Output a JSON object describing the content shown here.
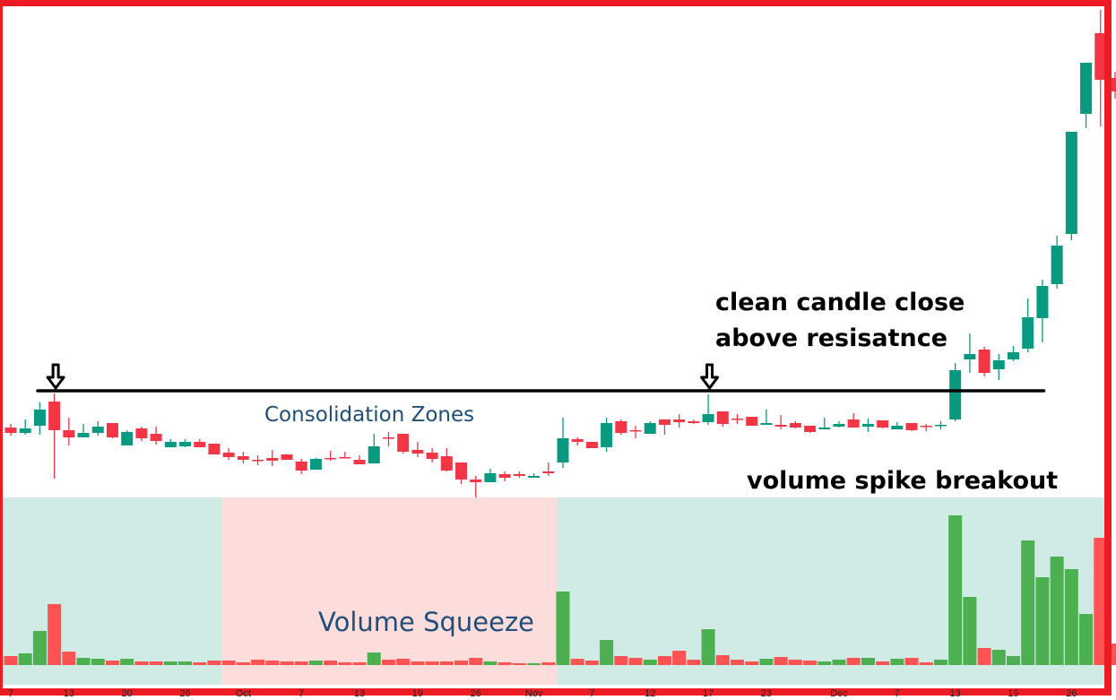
{
  "chart_data": {
    "type": "candlestick",
    "title": "",
    "xlabel": "",
    "ylabel": "",
    "grid": false,
    "x_ticks": [
      {
        "label": "7",
        "index": 1
      },
      {
        "label": "13",
        "index": 5
      },
      {
        "label": "20",
        "index": 9
      },
      {
        "label": "26",
        "index": 13
      },
      {
        "label": "Oct",
        "index": 17
      },
      {
        "label": "7",
        "index": 21
      },
      {
        "label": "13",
        "index": 25
      },
      {
        "label": "19",
        "index": 29
      },
      {
        "label": "26",
        "index": 33
      },
      {
        "label": "Nov",
        "index": 37
      },
      {
        "label": "7",
        "index": 41
      },
      {
        "label": "12",
        "index": 45
      },
      {
        "label": "17",
        "index": 49
      },
      {
        "label": "23",
        "index": 53
      },
      {
        "label": "Dec",
        "index": 58
      },
      {
        "label": "7",
        "index": 62
      },
      {
        "label": "13",
        "index": 66
      },
      {
        "label": "19",
        "index": 70
      },
      {
        "label": "26",
        "index": 74
      }
    ],
    "ohlc_columns": [
      "open",
      "high",
      "low",
      "close"
    ],
    "ohlc": [
      [
        85,
        87,
        76,
        79
      ],
      [
        83,
        87,
        74,
        77
      ],
      [
        77,
        92,
        75,
        82
      ],
      [
        85,
        111,
        75,
        103
      ],
      [
        112,
        121,
        26,
        80
      ],
      [
        80,
        94,
        63,
        72
      ],
      [
        72,
        87,
        72,
        77
      ],
      [
        77,
        90,
        74,
        84
      ],
      [
        88,
        88,
        71,
        72
      ],
      [
        63,
        80,
        63,
        78
      ],
      [
        82,
        84,
        68,
        71
      ],
      [
        76,
        84,
        64,
        68
      ],
      [
        61,
        70,
        61,
        67
      ],
      [
        62,
        70,
        61,
        67
      ],
      [
        67,
        70,
        61,
        61
      ],
      [
        65,
        65,
        53,
        53
      ],
      [
        55,
        60,
        47,
        50
      ],
      [
        51,
        56,
        43,
        47
      ],
      [
        47,
        52,
        41,
        46
      ],
      [
        49,
        58,
        40,
        46
      ],
      [
        53,
        53,
        47,
        47
      ],
      [
        45,
        48,
        31,
        35
      ],
      [
        36,
        49,
        36,
        48
      ],
      [
        49,
        57,
        46,
        48
      ],
      [
        50,
        56,
        49,
        49
      ],
      [
        47,
        52,
        42,
        42
      ],
      [
        43,
        76,
        43,
        62
      ],
      [
        72,
        78,
        62,
        71
      ],
      [
        76,
        76,
        54,
        56
      ],
      [
        58,
        67,
        50,
        54
      ],
      [
        55,
        60,
        44,
        48
      ],
      [
        51,
        60,
        34,
        35
      ],
      [
        44,
        44,
        20,
        25
      ],
      [
        25,
        29,
        5,
        22
      ],
      [
        22,
        37,
        22,
        32
      ],
      [
        31,
        34,
        23,
        27
      ],
      [
        31,
        34,
        27,
        29
      ],
      [
        27,
        32,
        27,
        29
      ],
      [
        34,
        44,
        29,
        32
      ],
      [
        44,
        94,
        38,
        71
      ],
      [
        70,
        72,
        63,
        67
      ],
      [
        67,
        67,
        60,
        60
      ],
      [
        61,
        94,
        56,
        88
      ],
      [
        90,
        92,
        75,
        77
      ],
      [
        80,
        85,
        71,
        79
      ],
      [
        76,
        90,
        76,
        88
      ],
      [
        92,
        92,
        75,
        86
      ],
      [
        92,
        98,
        83,
        89
      ],
      [
        90,
        92,
        87,
        88
      ],
      [
        89,
        120,
        86,
        98
      ],
      [
        101,
        101,
        84,
        87
      ],
      [
        93,
        98,
        87,
        92
      ],
      [
        95,
        95,
        85,
        85
      ],
      [
        86,
        103,
        86,
        88
      ],
      [
        86,
        97,
        81,
        84
      ],
      [
        88,
        90,
        82,
        83
      ],
      [
        85,
        85,
        77,
        78
      ],
      [
        81,
        94,
        81,
        83
      ],
      [
        84,
        90,
        83,
        87
      ],
      [
        92,
        99,
        83,
        83
      ],
      [
        84,
        93,
        78,
        87
      ],
      [
        91,
        91,
        82,
        83
      ],
      [
        81,
        89,
        81,
        85
      ],
      [
        88,
        88,
        79,
        80
      ],
      [
        85,
        87,
        79,
        84
      ],
      [
        85,
        90,
        81,
        86
      ],
      [
        92,
        155,
        90,
        147
      ],
      [
        159,
        188,
        144,
        165
      ],
      [
        170,
        173,
        140,
        144
      ],
      [
        148,
        165,
        136,
        158
      ],
      [
        159,
        174,
        157,
        167
      ],
      [
        171,
        227,
        167,
        206
      ],
      [
        205,
        248,
        178,
        241
      ],
      [
        243,
        297,
        238,
        286
      ],
      [
        299,
        413,
        292,
        413
      ],
      [
        433,
        490,
        417,
        490
      ],
      [
        523,
        549,
        419,
        471
      ],
      [
        473,
        480,
        450,
        458
      ]
    ],
    "volume": [
      10,
      10,
      13,
      38,
      68,
      15,
      8,
      7,
      5,
      7,
      4,
      4,
      4,
      4,
      3,
      5,
      5,
      3,
      6,
      5,
      4,
      4,
      5,
      5,
      3,
      3,
      14,
      6,
      7,
      4,
      4,
      4,
      5,
      8,
      4,
      3,
      2,
      2,
      3,
      82,
      7,
      5,
      28,
      10,
      8,
      6,
      10,
      16,
      6,
      40,
      11,
      6,
      4,
      7,
      9,
      6,
      5,
      4,
      6,
      8,
      8,
      4,
      7,
      8,
      3,
      6,
      167,
      76,
      19,
      17,
      10,
      139,
      98,
      121,
      107,
      57,
      142,
      24
    ],
    "resistance": {
      "price": 124,
      "from_index": 2.85,
      "to_index": 72.1
    },
    "marker_arrows_at_index": [
      4,
      49
    ],
    "volume_zones": [
      {
        "from_index": -0.5,
        "to_index": 15.5,
        "color": "#d0ebe6"
      },
      {
        "from_index": 15.5,
        "to_index": 38.6,
        "color": "#fddcdc"
      },
      {
        "from_index": 38.6,
        "to_index": 76.3,
        "color": "#d0ebe6"
      }
    ],
    "colors": {
      "candle_up": "#089981",
      "candle_down": "#f23645",
      "volume_up": "#4caf50",
      "volume_down": "#ff5252",
      "resistance": "#000000",
      "frame": "#ed1c24",
      "annotation_blue": "#1f4e79"
    }
  },
  "annotations": {
    "breakout_line1": "clean candle close",
    "breakout_line2": "above resisatnce",
    "volume_spike": "volume spike breakout",
    "consolidation": "Consolidation Zones",
    "squeeze": "Volume Squeeze"
  }
}
